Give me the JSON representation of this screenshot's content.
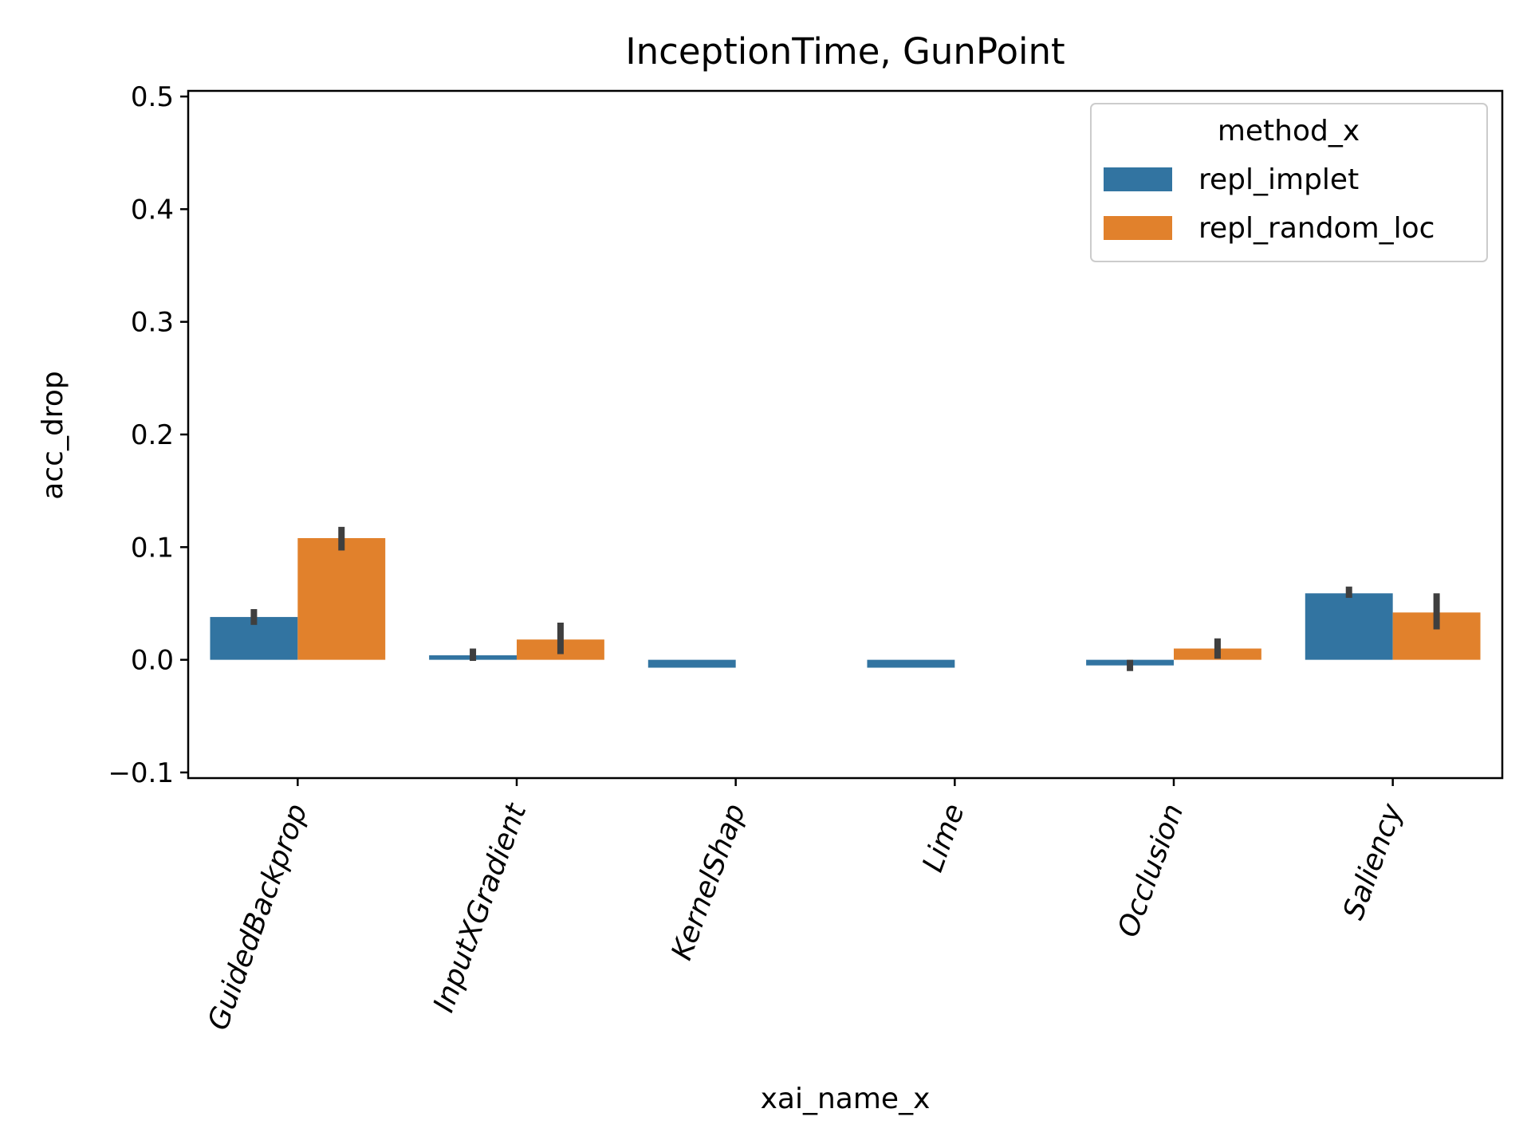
{
  "chart_data": {
    "type": "bar",
    "title": "InceptionTime, GunPoint",
    "xlabel": "xai_name_x",
    "ylabel": "acc_drop",
    "ylim": [
      -0.105,
      0.505
    ],
    "yticks": [
      -0.1,
      0.0,
      0.1,
      0.2,
      0.3,
      0.4,
      0.5
    ],
    "ytick_labels": [
      "−0.1",
      "0.0",
      "0.1",
      "0.2",
      "0.3",
      "0.4",
      "0.5"
    ],
    "categories": [
      "GuidedBackprop",
      "InputXGradient",
      "KernelShap",
      "Lime",
      "Occlusion",
      "Saliency"
    ],
    "grid": false,
    "legend": {
      "title": "method_x",
      "placement": "top-right"
    },
    "series": [
      {
        "name": "repl_implet",
        "color": "#3274a1",
        "values": [
          0.038,
          0.004,
          -0.007,
          -0.007,
          -0.005,
          0.059
        ],
        "err_low": [
          0.031,
          -0.001,
          null,
          null,
          -0.01,
          0.055
        ],
        "err_high": [
          0.045,
          0.01,
          null,
          null,
          0.0,
          0.065
        ]
      },
      {
        "name": "repl_random_loc",
        "color": "#e1812c",
        "values": [
          0.108,
          0.018,
          null,
          null,
          0.01,
          0.042
        ],
        "err_low": [
          0.097,
          0.005,
          null,
          null,
          0.001,
          0.027
        ],
        "err_high": [
          0.118,
          0.033,
          null,
          null,
          0.019,
          0.059
        ]
      }
    ],
    "error_bar_color": "#3f3f3f"
  }
}
